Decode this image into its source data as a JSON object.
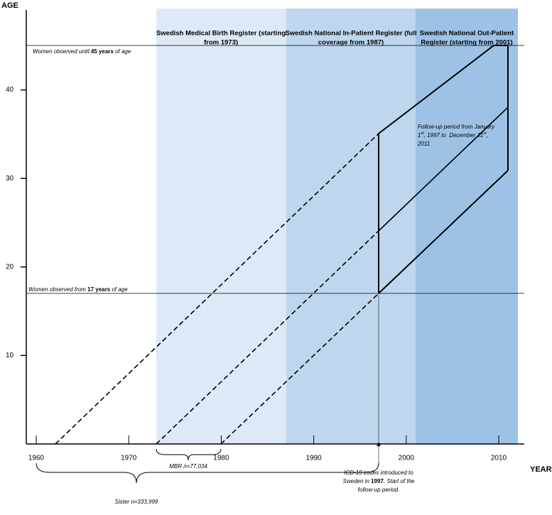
{
  "axes": {
    "y_label": "AGE",
    "x_label": "YEAR",
    "xticks": [
      1960,
      1970,
      1980,
      1990,
      2000,
      2010
    ],
    "yticks": [
      10,
      20,
      30,
      40
    ]
  },
  "registers": [
    {
      "line1": "Swedish Medical Birth Register (starting",
      "line2": "from 1973)"
    },
    {
      "line1": "Swedish National In-Patient Register (full",
      "line2": "coverage from 1987)"
    },
    {
      "line1": "Swedish National Out-Patient",
      "line2": "Register (starting from 2001)"
    }
  ],
  "annotations": {
    "upper": {
      "pre": "Women observed until ",
      "bold": "45 years",
      "post": " of age"
    },
    "lower": {
      "pre": "Women observed from ",
      "bold": "17 years",
      "post": " of age"
    },
    "follow_up": {
      "line1": "Follow-up period from January",
      "a": "1",
      "sup1": "st",
      "b": ", 1997 to  December 31",
      "sup2": "st",
      "c": ",",
      "line3": "2011"
    },
    "mbr": "MBR n=77,034",
    "sister": "Sister n=333,999",
    "icd": {
      "line1": "ICD-10 codes introduced to",
      "pre": "Sweden in ",
      "bold": "1997",
      "post": ". Start of the",
      "line3": "follow-up period."
    }
  }
}
